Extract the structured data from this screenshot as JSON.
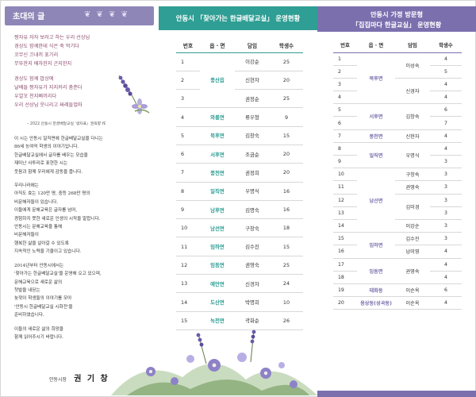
{
  "left": {
    "header_title": "초대의 글",
    "ornament": "❦ ❦ ❦ ❦",
    "poem_lines_1": [
      "짱자유 자자 보러고 하는 우리 선상님",
      "경상도 함께한테 식은 죽 먹기다",
      "꼬무신 끄내끼 포기리",
      "무뚜한지 배차한지 곤지한지"
    ],
    "poem_lines_2": [
      "경상도 함께 밥상에",
      "날배들 짱자유가 지지커리 춤춘다",
      "우얄꼬 천지삐끼리다",
      "우리 선상님 웃니리고 싸레들었따"
    ],
    "poem_credit": "– 2022 안동시 한글배달교실 '생자표』권옥향 作",
    "letter_paragraphs": [
      [
        "이 시는 안동시 일직면에 한글배달교실을 다니는",
        "86세 능여억 학생의 이야기입니다.",
        "한글배달교실에서 글자를 배우는 모습을",
        "재미난 사투리로 표현한 시는",
        "웃음과 함께 우리에게 감동을 줍니다."
      ],
      [
        "우리나라에는",
        "아직도 효는 120만 명, 중등 268만 명의",
        "비문해자들이 있습니다.",
        "이들에게 문해교육은 글자를 넘어,",
        "경험하지 못한 새로운 인생의 시작을 말합니다.",
        "안동시는 문해교육을 통해",
        "비문해자들이",
        "행복한 삶을 살아갈 수 있도록",
        "지속적인 노력을 기울이고 있습니다."
      ],
      [
        "2014년부터 안동시에서는",
        "'찾아가는 한글배달교실'을 운영해 오고 있으며,",
        "문해교육으로 새로운 삶의",
        "첫발을 내딛는",
        "늦깎이 학생들의 이야기를 모아",
        "'안동시 한글배달교실 시화전'을",
        "준비하였습니다."
      ],
      [
        "이들의 새로운 삶의 희망을",
        "함께 읽어주시기 바랍니다."
      ]
    ],
    "sign_role": "안동시장",
    "sign_name": "권 기 창"
  },
  "middle": {
    "header_title": "안동시 「찾아가는 한글배달교실」 운영현황",
    "columns": [
      "번호",
      "읍 · 면",
      "담임",
      "학생수"
    ],
    "rows": [
      {
        "no": "1",
        "region": "풍산읍",
        "span": 3,
        "teacher": "이강순",
        "students": "25"
      },
      {
        "no": "2",
        "teacher": "신현자",
        "students": "20"
      },
      {
        "no": "3",
        "teacher": "권정순",
        "students": "25"
      },
      {
        "no": "4",
        "region": "와룡면",
        "span": 1,
        "teacher": "류우형",
        "students": "9"
      },
      {
        "no": "5",
        "region": "북후면",
        "span": 1,
        "teacher": "김창숙",
        "students": "15"
      },
      {
        "no": "6",
        "region": "서후면",
        "span": 1,
        "teacher": "조금순",
        "students": "20"
      },
      {
        "no": "7",
        "region": "풍천면",
        "span": 1,
        "teacher": "권정희",
        "students": "20"
      },
      {
        "no": "8",
        "region": "일직면",
        "span": 1,
        "teacher": "우명식",
        "students": "16"
      },
      {
        "no": "9",
        "region": "남후면",
        "span": 1,
        "teacher": "김명숙",
        "students": "16"
      },
      {
        "no": "10",
        "region": "남선면",
        "span": 1,
        "teacher": "구창숙",
        "students": "18"
      },
      {
        "no": "11",
        "region": "임하면",
        "span": 1,
        "teacher": "김수진",
        "students": "15"
      },
      {
        "no": "12",
        "region": "임동면",
        "span": 1,
        "teacher": "권영숙",
        "students": "25"
      },
      {
        "no": "13",
        "region": "예안면",
        "span": 1,
        "teacher": "신경자",
        "students": "24"
      },
      {
        "no": "14",
        "region": "도산면",
        "span": 1,
        "teacher": "박명희",
        "students": "10"
      },
      {
        "no": "15",
        "region": "녹전면",
        "span": 1,
        "teacher": "곽화순",
        "students": "26"
      }
    ]
  },
  "right": {
    "header_line1": "안동시 가정 방문형",
    "header_line2": "「집집마다 한글교실」 운영현황",
    "columns": [
      "번호",
      "읍 · 면",
      "담임",
      "학생수"
    ],
    "rows": [
      {
        "no": "1",
        "region": "북후면",
        "rspan": 4,
        "teacher": "이성숙",
        "tspan": 2,
        "students": "4"
      },
      {
        "no": "2",
        "students": "5"
      },
      {
        "no": "3",
        "teacher": "신경자",
        "tspan": 2,
        "students": "4"
      },
      {
        "no": "4",
        "students": "4"
      },
      {
        "no": "5",
        "region": "서후면",
        "rspan": 2,
        "teacher": "김창숙",
        "tspan": 2,
        "students": "6"
      },
      {
        "no": "6",
        "students": "7"
      },
      {
        "no": "7",
        "region": "풍천면",
        "rspan": 1,
        "teacher": "신현자",
        "tspan": 1,
        "students": "4"
      },
      {
        "no": "8",
        "region": "일직면",
        "rspan": 2,
        "teacher": "우명식",
        "tspan": 2,
        "students": "4"
      },
      {
        "no": "9",
        "students": "3"
      },
      {
        "no": "10",
        "region": "남선면",
        "rspan": 5,
        "teacher": "구창숙",
        "tspan": 1,
        "students": "3"
      },
      {
        "no": "11",
        "teacher": "권영숙",
        "tspan": 1,
        "students": "3"
      },
      {
        "no": "12",
        "teacher": "김미경",
        "tspan": 2,
        "students": "3"
      },
      {
        "no": "13",
        "students": "3"
      },
      {
        "no": "14",
        "teacher": "이강순",
        "tspan": 1,
        "students": "3"
      },
      {
        "no": "15",
        "region": "임하면",
        "rspan": 2,
        "teacher": "김수진",
        "tspan": 1,
        "students": "3"
      },
      {
        "no": "16",
        "teacher": "남미영",
        "tspan": 1,
        "students": "4"
      },
      {
        "no": "17",
        "region": "임동면",
        "rspan": 2,
        "teacher": "권영숙",
        "tspan": 2,
        "students": "4"
      },
      {
        "no": "18",
        "students": "4"
      },
      {
        "no": "19",
        "region": "태화동",
        "rspan": 1,
        "teacher": "이순옥",
        "tspan": 1,
        "students": "6"
      },
      {
        "no": "20",
        "region": "용상동(성곡동)",
        "rspan": 1,
        "teacher": "이순옥",
        "tspan": 1,
        "students": "4"
      }
    ]
  },
  "colors": {
    "teal": "#2f9e94",
    "purple": "#7b6fae",
    "lavender": "#8f86b8",
    "poem": "#8a4a6a"
  }
}
